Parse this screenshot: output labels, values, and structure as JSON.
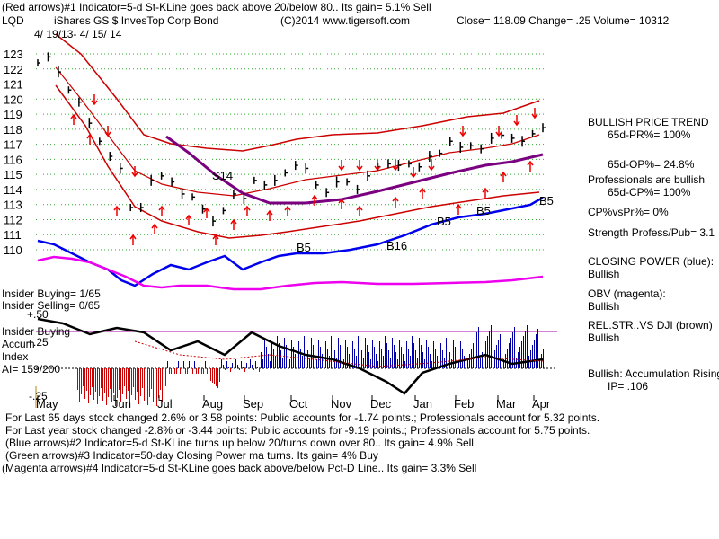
{
  "header": {
    "line1": "(Red arrows)#1 Indicator=5-d St-KLine goes back above 20/below 80.. Its gain= 5.1% Sell",
    "symbol": "LQD",
    "name": "iShares GS $ InvesTop Corp Bond",
    "copyright": "(C)2014 www.tigersoft.com",
    "quote": "Close=  118.09  Change= .25 Volume= 10312",
    "dates": "4/ 19/13- 4/ 15/ 14"
  },
  "right_panel": {
    "trend_title": "BULLISH PRICE TREND",
    "pr": "65d-PR%= 100%",
    "op": "65d-OP%= 24.8%",
    "prof": "Professionals are bullish",
    "cp": "65d-CP%= 100%",
    "cpvspr": "CP%vsPr%=  0%",
    "strength": "Strength Profess/Pub= 3.1",
    "cp_label": "CLOSING POWER (blue):",
    "cp_val": "Bullish",
    "obv_label": "OBV (magenta):",
    "obv_val": "Bullish",
    "rel_label": "REL.STR..VS DJI (brown)",
    "rel_val": "Bullish",
    "accum_label": "Bullish: Accumulation Rising",
    "ip": "IP=  .106"
  },
  "left_labels": {
    "insider_buying": "Insider Buying= 1/65",
    "insider_selling": "Insider Selling= 0/65",
    "insider_buying2": "Insider Buying",
    "accum1": "Accum",
    "accum2": "Index",
    "ai": "AI= 159/200",
    "p50": "+.50",
    "p25": "+.25",
    "m25": "-.25"
  },
  "annotations": {
    "s14": "S14",
    "b5a": "B5",
    "b16": "B16",
    "b5b": "B5",
    "b5c": "B5",
    "b5d": "B5"
  },
  "footer": {
    "l1": "For Last 65 days stock changed  2.6% or  3.58 points:  Public accounts for -1.74 points.;  Professionals account for  5.32 points.",
    "l2": "For Last year stock changed -2.8% or -3.44 points:  Public accounts for -9.19 points.;  Professionals account for  5.75 points.",
    "l3": "(Blue arrows)#2 Indicator=5-d St-KLine turns up below 20/turns down over 80.. Its gain= 4.9% Sell",
    "l4": "(Green arrows)#3 Indicator=50-day Closing Power ma turns. Its gain= 4% Buy",
    "l5": "(Magenta arrows)#4 Indicator=5-d St-KLine goes back above/below Pct-D Line.. Its gain= 3.3% Sell"
  },
  "colors": {
    "price_bars": "#000000",
    "bands": "#cc0000",
    "red_arrows": "#ee0000",
    "closing_power": "#0000ee",
    "obv": "#ee00ee",
    "ma_purple": "#7a0080",
    "accum_positive": "#0000aa",
    "accum_negative": "#cc0000",
    "grid": "#33aa33"
  },
  "chart_data": {
    "type": "line",
    "x_tick_labels": [
      "May",
      "Jun",
      "Jul",
      "Aug",
      "Sep",
      "Oct",
      "Nov",
      "Dec",
      "Jan",
      "Feb",
      "Mar",
      "Apr"
    ],
    "y_tick_labels": [
      "110",
      "111",
      "112",
      "113",
      "114",
      "115",
      "116",
      "117",
      "118",
      "119",
      "120",
      "121",
      "122",
      "123"
    ],
    "ylim": [
      109.3,
      123.3
    ],
    "grid": true,
    "price_close": [
      122.4,
      122.8,
      121.8,
      120.6,
      119.8,
      118.4,
      117.2,
      116.2,
      115.4,
      112.8,
      112.8,
      114.6,
      114.9,
      114.5,
      113.7,
      113.5,
      112.7,
      111.9,
      112.6,
      113.7,
      113.4,
      114.6,
      114.3,
      114.6,
      115.1,
      115.6,
      115.4,
      114.3,
      113.8,
      114.5,
      114.5,
      114.0,
      114.9,
      115.5,
      115.7,
      115.6,
      115.7,
      115.5,
      116.2,
      116.4,
      117.2,
      116.8,
      116.9,
      116.7,
      117.4,
      117.6,
      117.4,
      117.2,
      117.7,
      118.1
    ]
  }
}
